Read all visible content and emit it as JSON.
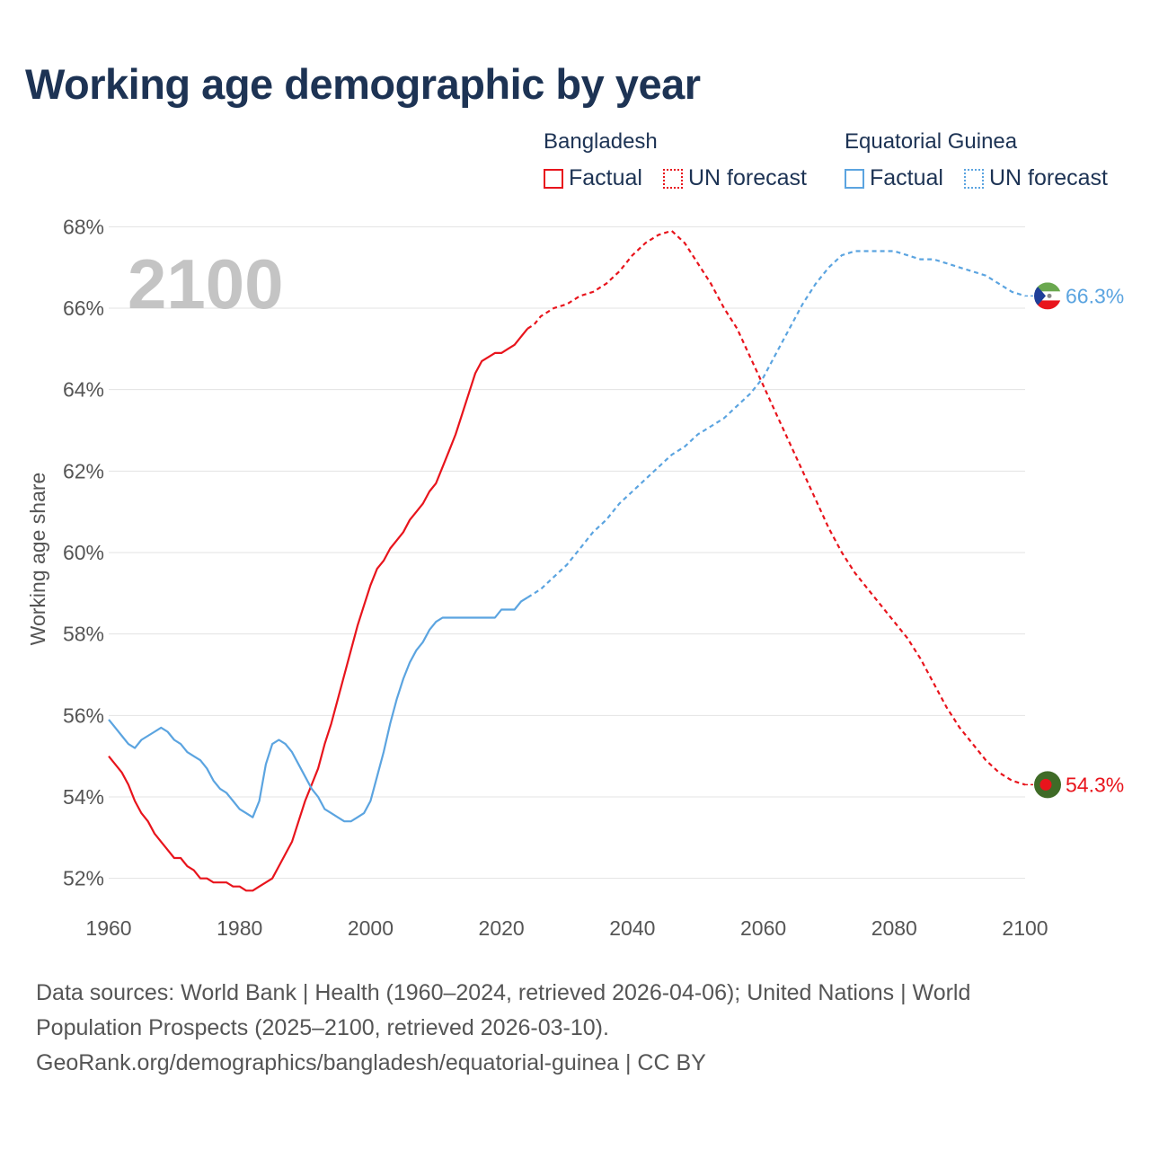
{
  "title": "Working age demographic by year",
  "legend": {
    "groups": [
      {
        "name": "Bangladesh",
        "color": "#e8141c",
        "factual_label": "Factual",
        "forecast_label": "UN forecast"
      },
      {
        "name": "Equatorial Guinea",
        "color": "#5ba4e0",
        "factual_label": "Factual",
        "forecast_label": "UN forecast"
      }
    ]
  },
  "source": {
    "line1": "Data sources: World Bank | Health (1960–2024, retrieved 2026-04-06); United Nations | World",
    "line2": "Population Prospects (2025–2100, retrieved 2026-03-10).",
    "line3": "GeoRank.org/demographics/bangladesh/equatorial-guinea | CC BY"
  },
  "chart_data": {
    "type": "line",
    "title": "Working age demographic by year",
    "ylabel": "Working age share",
    "xlabel": "",
    "year_label": "2100",
    "xlim": [
      1960,
      2100
    ],
    "ylim": [
      51,
      69
    ],
    "x_ticks": [
      1960,
      1980,
      2000,
      2020,
      2040,
      2060,
      2080,
      2100
    ],
    "y_ticks": [
      52,
      54,
      56,
      58,
      60,
      62,
      64,
      66,
      68
    ],
    "y_tick_labels": [
      "52%",
      "54%",
      "56%",
      "58%",
      "60%",
      "62%",
      "64%",
      "66%",
      "68%"
    ],
    "forecast_start": 2024,
    "series": [
      {
        "name": "Bangladesh",
        "color": "#e8141c",
        "end_label": "54.3%",
        "flag": "bangladesh-flag",
        "points": [
          [
            1960,
            55.0
          ],
          [
            1962,
            54.6
          ],
          [
            1963,
            54.3
          ],
          [
            1964,
            53.9
          ],
          [
            1965,
            53.6
          ],
          [
            1966,
            53.4
          ],
          [
            1967,
            53.1
          ],
          [
            1968,
            52.9
          ],
          [
            1969,
            52.7
          ],
          [
            1970,
            52.5
          ],
          [
            1971,
            52.5
          ],
          [
            1972,
            52.3
          ],
          [
            1973,
            52.2
          ],
          [
            1974,
            52.0
          ],
          [
            1975,
            52.0
          ],
          [
            1976,
            51.9
          ],
          [
            1978,
            51.9
          ],
          [
            1979,
            51.8
          ],
          [
            1980,
            51.8
          ],
          [
            1981,
            51.7
          ],
          [
            1982,
            51.7
          ],
          [
            1983,
            51.8
          ],
          [
            1984,
            51.9
          ],
          [
            1985,
            52.0
          ],
          [
            1986,
            52.3
          ],
          [
            1987,
            52.6
          ],
          [
            1988,
            52.9
          ],
          [
            1989,
            53.4
          ],
          [
            1990,
            53.9
          ],
          [
            1991,
            54.3
          ],
          [
            1992,
            54.7
          ],
          [
            1993,
            55.3
          ],
          [
            1994,
            55.8
          ],
          [
            1995,
            56.4
          ],
          [
            1996,
            57.0
          ],
          [
            1997,
            57.6
          ],
          [
            1998,
            58.2
          ],
          [
            1999,
            58.7
          ],
          [
            2000,
            59.2
          ],
          [
            2001,
            59.6
          ],
          [
            2002,
            59.8
          ],
          [
            2003,
            60.1
          ],
          [
            2004,
            60.3
          ],
          [
            2005,
            60.5
          ],
          [
            2006,
            60.8
          ],
          [
            2007,
            61.0
          ],
          [
            2008,
            61.2
          ],
          [
            2009,
            61.5
          ],
          [
            2010,
            61.7
          ],
          [
            2011,
            62.1
          ],
          [
            2012,
            62.5
          ],
          [
            2013,
            62.9
          ],
          [
            2014,
            63.4
          ],
          [
            2015,
            63.9
          ],
          [
            2016,
            64.4
          ],
          [
            2017,
            64.7
          ],
          [
            2018,
            64.8
          ],
          [
            2019,
            64.9
          ],
          [
            2020,
            64.9
          ],
          [
            2021,
            65.0
          ],
          [
            2022,
            65.1
          ],
          [
            2023,
            65.3
          ],
          [
            2024,
            65.5
          ],
          [
            2025,
            65.6
          ],
          [
            2026,
            65.8
          ],
          [
            2028,
            66.0
          ],
          [
            2030,
            66.1
          ],
          [
            2032,
            66.3
          ],
          [
            2034,
            66.4
          ],
          [
            2036,
            66.6
          ],
          [
            2038,
            66.9
          ],
          [
            2040,
            67.3
          ],
          [
            2042,
            67.6
          ],
          [
            2044,
            67.8
          ],
          [
            2046,
            67.9
          ],
          [
            2048,
            67.6
          ],
          [
            2050,
            67.1
          ],
          [
            2052,
            66.6
          ],
          [
            2054,
            66.0
          ],
          [
            2056,
            65.5
          ],
          [
            2058,
            64.8
          ],
          [
            2060,
            64.1
          ],
          [
            2062,
            63.4
          ],
          [
            2064,
            62.7
          ],
          [
            2066,
            62.0
          ],
          [
            2068,
            61.3
          ],
          [
            2070,
            60.6
          ],
          [
            2072,
            60.0
          ],
          [
            2074,
            59.5
          ],
          [
            2076,
            59.1
          ],
          [
            2078,
            58.7
          ],
          [
            2080,
            58.3
          ],
          [
            2082,
            57.9
          ],
          [
            2084,
            57.4
          ],
          [
            2086,
            56.8
          ],
          [
            2088,
            56.2
          ],
          [
            2090,
            55.7
          ],
          [
            2092,
            55.3
          ],
          [
            2094,
            54.9
          ],
          [
            2096,
            54.6
          ],
          [
            2098,
            54.4
          ],
          [
            2100,
            54.3
          ]
        ]
      },
      {
        "name": "Equatorial Guinea",
        "color": "#5ba4e0",
        "end_label": "66.3%",
        "flag": "equatorial-guinea-flag",
        "points": [
          [
            1960,
            55.9
          ],
          [
            1961,
            55.7
          ],
          [
            1962,
            55.5
          ],
          [
            1963,
            55.3
          ],
          [
            1964,
            55.2
          ],
          [
            1965,
            55.4
          ],
          [
            1966,
            55.5
          ],
          [
            1967,
            55.6
          ],
          [
            1968,
            55.7
          ],
          [
            1969,
            55.6
          ],
          [
            1970,
            55.4
          ],
          [
            1971,
            55.3
          ],
          [
            1972,
            55.1
          ],
          [
            1973,
            55.0
          ],
          [
            1974,
            54.9
          ],
          [
            1975,
            54.7
          ],
          [
            1976,
            54.4
          ],
          [
            1977,
            54.2
          ],
          [
            1978,
            54.1
          ],
          [
            1979,
            53.9
          ],
          [
            1980,
            53.7
          ],
          [
            1981,
            53.6
          ],
          [
            1982,
            53.5
          ],
          [
            1983,
            53.9
          ],
          [
            1984,
            54.8
          ],
          [
            1985,
            55.3
          ],
          [
            1986,
            55.4
          ],
          [
            1987,
            55.3
          ],
          [
            1988,
            55.1
          ],
          [
            1989,
            54.8
          ],
          [
            1990,
            54.5
          ],
          [
            1991,
            54.2
          ],
          [
            1992,
            54.0
          ],
          [
            1993,
            53.7
          ],
          [
            1994,
            53.6
          ],
          [
            1995,
            53.5
          ],
          [
            1996,
            53.4
          ],
          [
            1997,
            53.4
          ],
          [
            1998,
            53.5
          ],
          [
            1999,
            53.6
          ],
          [
            2000,
            53.9
          ],
          [
            2001,
            54.5
          ],
          [
            2002,
            55.1
          ],
          [
            2003,
            55.8
          ],
          [
            2004,
            56.4
          ],
          [
            2005,
            56.9
          ],
          [
            2006,
            57.3
          ],
          [
            2007,
            57.6
          ],
          [
            2008,
            57.8
          ],
          [
            2009,
            58.1
          ],
          [
            2010,
            58.3
          ],
          [
            2011,
            58.4
          ],
          [
            2015,
            58.4
          ],
          [
            2019,
            58.4
          ],
          [
            2020,
            58.6
          ],
          [
            2022,
            58.6
          ],
          [
            2023,
            58.8
          ],
          [
            2024,
            58.9
          ],
          [
            2026,
            59.1
          ],
          [
            2028,
            59.4
          ],
          [
            2030,
            59.7
          ],
          [
            2032,
            60.1
          ],
          [
            2034,
            60.5
          ],
          [
            2036,
            60.8
          ],
          [
            2038,
            61.2
          ],
          [
            2040,
            61.5
          ],
          [
            2042,
            61.8
          ],
          [
            2044,
            62.1
          ],
          [
            2046,
            62.4
          ],
          [
            2048,
            62.6
          ],
          [
            2050,
            62.9
          ],
          [
            2052,
            63.1
          ],
          [
            2054,
            63.3
          ],
          [
            2056,
            63.6
          ],
          [
            2058,
            63.9
          ],
          [
            2060,
            64.3
          ],
          [
            2062,
            64.9
          ],
          [
            2064,
            65.5
          ],
          [
            2066,
            66.1
          ],
          [
            2068,
            66.6
          ],
          [
            2070,
            67.0
          ],
          [
            2072,
            67.3
          ],
          [
            2074,
            67.4
          ],
          [
            2076,
            67.4
          ],
          [
            2080,
            67.4
          ],
          [
            2082,
            67.3
          ],
          [
            2084,
            67.2
          ],
          [
            2086,
            67.2
          ],
          [
            2088,
            67.1
          ],
          [
            2090,
            67.0
          ],
          [
            2092,
            66.9
          ],
          [
            2094,
            66.8
          ],
          [
            2096,
            66.6
          ],
          [
            2098,
            66.4
          ],
          [
            2100,
            66.3
          ]
        ]
      }
    ]
  }
}
